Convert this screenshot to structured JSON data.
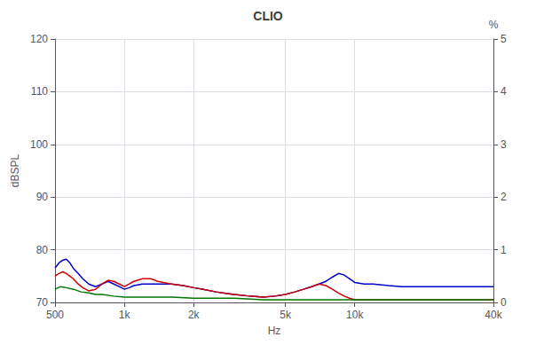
{
  "chart_data": {
    "type": "line",
    "title": "CLIO",
    "xlabel": "Hz",
    "ylabel": "dBSPL",
    "y2label": "%",
    "log": "x",
    "grid": true,
    "xlim": [
      500,
      40000
    ],
    "xticks": [
      500,
      {
        "value": 1000,
        "label": "1k"
      },
      {
        "value": 2000,
        "label": "2k"
      },
      {
        "value": 5000,
        "label": "5k"
      },
      {
        "value": 10000,
        "label": "10k"
      },
      {
        "value": 40000,
        "label": "40k"
      }
    ],
    "ylim": [
      70,
      120
    ],
    "yticks": [
      70,
      80,
      90,
      100,
      110,
      120
    ],
    "y2lim": [
      0,
      5
    ],
    "y2ticks": [
      0,
      1,
      2,
      3,
      4,
      5
    ],
    "series": [
      {
        "color": "#0000cc",
        "x": [
          500,
          520,
          540,
          560,
          580,
          600,
          630,
          660,
          700,
          750,
          800,
          850,
          900,
          950,
          1000,
          1050,
          1100,
          1200,
          1300,
          1400,
          1600,
          1800,
          2000,
          2200,
          2500,
          3000,
          3500,
          4000,
          4500,
          5000,
          5500,
          6000,
          6500,
          7000,
          7500,
          8000,
          8500,
          9000,
          9500,
          10000,
          11000,
          12000,
          14000,
          16000,
          20000,
          25000,
          30000,
          40000
        ],
        "values": [
          76.5,
          77.5,
          78.0,
          78.2,
          77.5,
          76.5,
          75.5,
          74.5,
          73.5,
          73.0,
          73.5,
          74.0,
          73.5,
          73.0,
          72.5,
          72.8,
          73.2,
          73.5,
          73.5,
          73.5,
          73.5,
          73.2,
          72.8,
          72.5,
          72.0,
          71.5,
          71.2,
          71.0,
          71.2,
          71.5,
          72.0,
          72.5,
          73.0,
          73.5,
          74.0,
          74.8,
          75.5,
          75.2,
          74.5,
          73.8,
          73.5,
          73.5,
          73.2,
          73.0,
          73.0,
          73.0,
          73.0,
          73.0
        ]
      },
      {
        "color": "#cc0000",
        "x": [
          500,
          520,
          540,
          560,
          580,
          600,
          630,
          660,
          700,
          750,
          800,
          850,
          900,
          950,
          1000,
          1050,
          1100,
          1200,
          1300,
          1400,
          1600,
          1800,
          2000,
          2200,
          2500,
          3000,
          3500,
          4000,
          4500,
          5000,
          5500,
          6000,
          6500,
          7000,
          7500,
          8000,
          8500,
          9000,
          9500,
          10000,
          11000,
          12000,
          14000,
          20000,
          30000,
          40000
        ],
        "values": [
          75.0,
          75.5,
          75.8,
          75.5,
          75.0,
          74.5,
          73.5,
          72.8,
          72.2,
          72.5,
          73.5,
          74.2,
          74.0,
          73.5,
          73.0,
          73.5,
          74.0,
          74.5,
          74.5,
          74.0,
          73.5,
          73.2,
          72.8,
          72.5,
          72.0,
          71.5,
          71.2,
          71.0,
          71.2,
          71.5,
          72.0,
          72.5,
          73.0,
          73.5,
          73.2,
          72.5,
          71.8,
          71.2,
          70.8,
          70.5,
          70.5,
          70.5,
          70.5,
          70.5,
          70.5,
          70.5
        ]
      },
      {
        "color": "#007700",
        "x": [
          500,
          530,
          560,
          600,
          650,
          700,
          750,
          800,
          900,
          1000,
          1200,
          1400,
          1600,
          2000,
          2500,
          3000,
          4000,
          5000,
          6000,
          7000,
          8000,
          9000,
          10000,
          12000,
          15000,
          20000,
          30000,
          40000
        ],
        "values": [
          72.5,
          73.0,
          72.8,
          72.5,
          72.0,
          71.8,
          71.5,
          71.5,
          71.2,
          71.0,
          71.0,
          71.0,
          71.0,
          70.8,
          70.8,
          70.8,
          70.5,
          70.5,
          70.5,
          70.5,
          70.5,
          70.5,
          70.5,
          70.5,
          70.5,
          70.5,
          70.5,
          70.5
        ]
      }
    ]
  }
}
